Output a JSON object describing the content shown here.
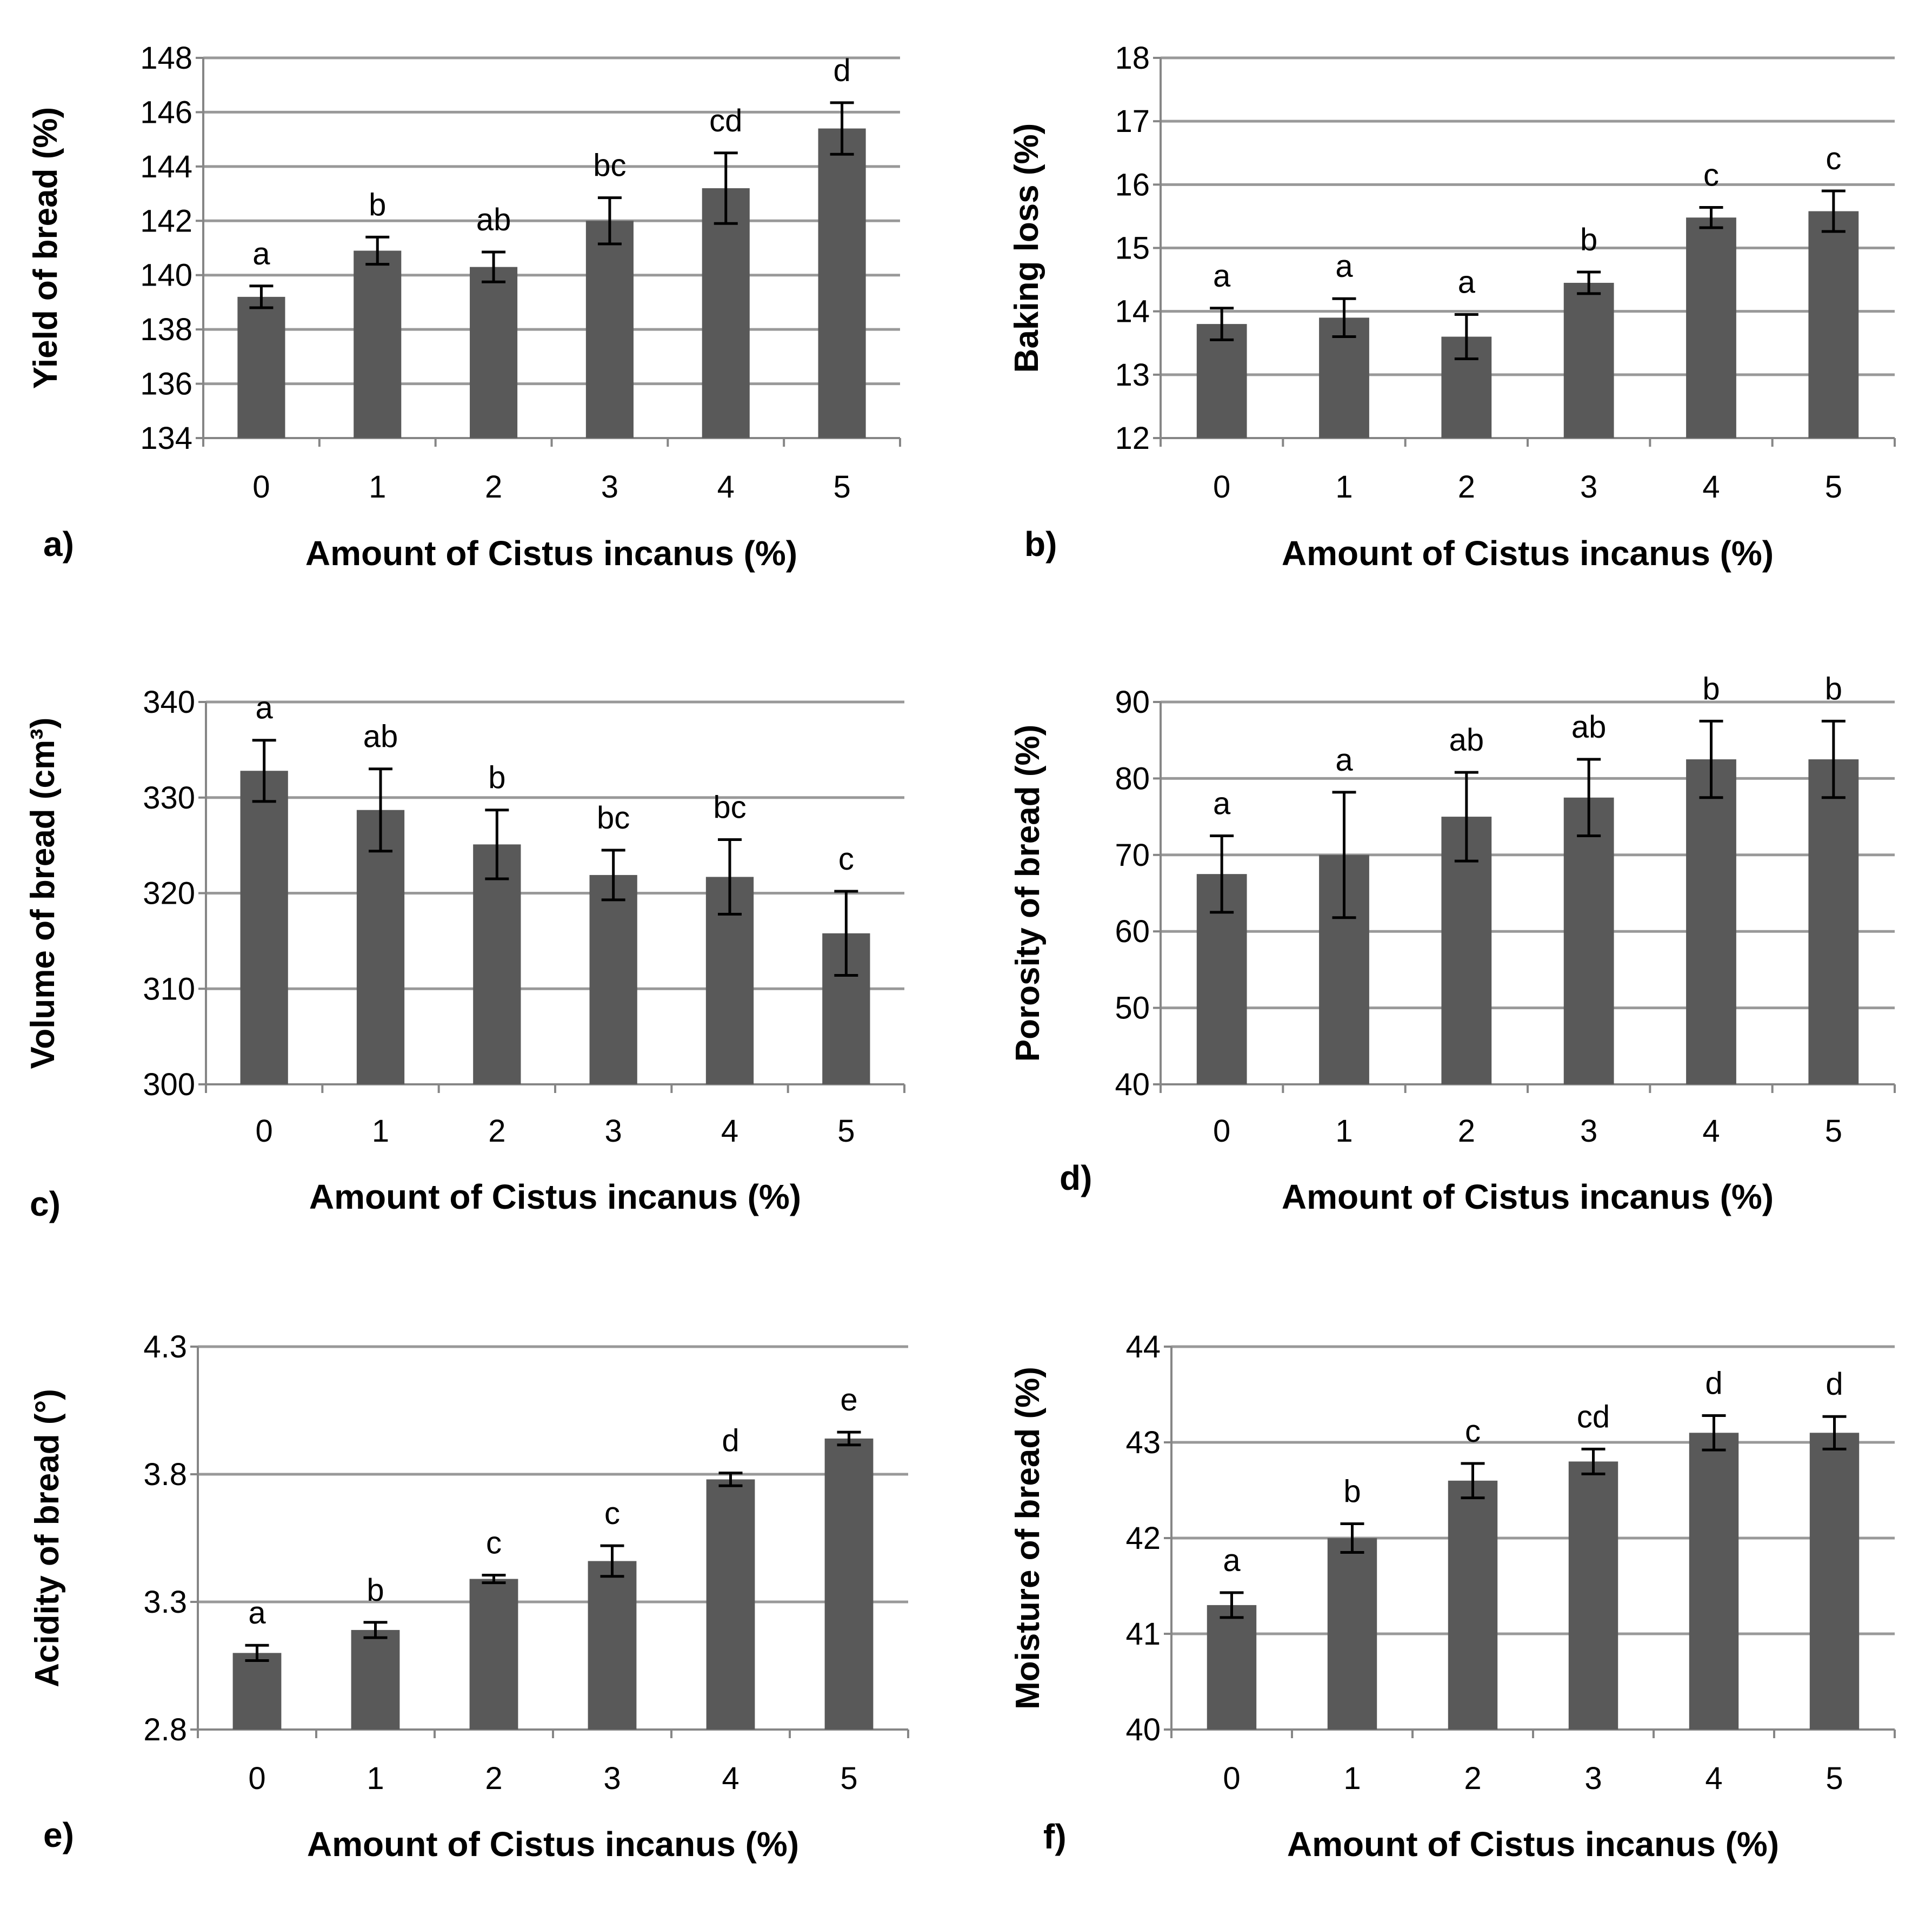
{
  "chart_data": [
    {
      "type": "bar",
      "panel_label": "a)",
      "ylabel": "Yield  of bread (%)",
      "xlabel": "Amount of Cistus incanus (%)",
      "categories": [
        "0",
        "1",
        "2",
        "3",
        "4",
        "5"
      ],
      "values": [
        139.2,
        140.9,
        140.3,
        142.0,
        143.2,
        145.4
      ],
      "errors": [
        0.4,
        0.5,
        0.55,
        0.85,
        1.3,
        0.95
      ],
      "letters": [
        "a",
        "b",
        "ab",
        "bc",
        "cd",
        "d"
      ],
      "ylim": [
        134,
        148
      ],
      "yticks": [
        "134",
        "136",
        "138",
        "140",
        "142",
        "144",
        "146",
        "148"
      ],
      "grid": true
    },
    {
      "type": "bar",
      "panel_label": "b)",
      "ylabel": "Baking loss (%)",
      "xlabel": "Amount of Cistus incanus (%)",
      "categories": [
        "0",
        "1",
        "2",
        "3",
        "4",
        "5"
      ],
      "values": [
        13.8,
        13.9,
        13.6,
        14.45,
        15.48,
        15.58
      ],
      "errors": [
        0.25,
        0.3,
        0.35,
        0.17,
        0.16,
        0.32
      ],
      "letters": [
        "a",
        "a",
        "a",
        "b",
        "c",
        "c"
      ],
      "ylim": [
        12,
        18
      ],
      "yticks": [
        "12",
        "13",
        "14",
        "15",
        "16",
        "17",
        "18"
      ],
      "grid": true
    },
    {
      "type": "bar",
      "panel_label": "c)",
      "ylabel": "Volume of bread (cm³)",
      "xlabel": "Amount of Cistus incanus (%)",
      "categories": [
        "0",
        "1",
        "2",
        "3",
        "4",
        "5"
      ],
      "values": [
        332.8,
        328.7,
        325.1,
        321.9,
        321.7,
        315.8
      ],
      "errors": [
        3.2,
        4.3,
        3.6,
        2.6,
        3.9,
        4.4
      ],
      "letters": [
        "a",
        "ab",
        "b",
        "bc",
        "bc",
        "c"
      ],
      "ylim": [
        300,
        340
      ],
      "yticks": [
        "300",
        "310",
        "320",
        "330",
        "340"
      ],
      "grid": true
    },
    {
      "type": "bar",
      "panel_label": "d)",
      "ylabel": "Porosity of bread (%)",
      "xlabel": "Amount of Cistus incanus (%)",
      "categories": [
        "0",
        "1",
        "2",
        "3",
        "4",
        "5"
      ],
      "values": [
        67.5,
        70.0,
        75.0,
        77.5,
        82.5,
        82.5
      ],
      "errors": [
        5.0,
        8.2,
        5.8,
        5.0,
        5.0,
        5.0
      ],
      "letters": [
        "a",
        "a",
        "ab",
        "ab",
        "b",
        "b"
      ],
      "ylim": [
        40,
        90
      ],
      "yticks": [
        "40",
        "50",
        "60",
        "70",
        "80",
        "90"
      ],
      "grid": true
    },
    {
      "type": "bar",
      "panel_label": "e)",
      "ylabel": "Acidity of bread (°)",
      "xlabel": "Amount of Cistus incanus (%)",
      "categories": [
        "0",
        "1",
        "2",
        "3",
        "4",
        "5"
      ],
      "values": [
        3.1,
        3.19,
        3.39,
        3.46,
        3.78,
        3.94
      ],
      "errors": [
        0.03,
        0.03,
        0.015,
        0.06,
        0.025,
        0.025
      ],
      "letters": [
        "a",
        "b",
        "c",
        "c",
        "d",
        "e"
      ],
      "ylim": [
        2.8,
        4.3
      ],
      "yticks": [
        "2.8",
        "3.3",
        "3.8",
        "4.3"
      ],
      "grid": true
    },
    {
      "type": "bar",
      "panel_label": "f)",
      "ylabel": "Moisture of bread (%)",
      "xlabel": "Amount of Cistus incanus (%)",
      "categories": [
        "0",
        "1",
        "2",
        "3",
        "4",
        "5"
      ],
      "values": [
        41.3,
        42.0,
        42.6,
        42.8,
        43.1,
        43.1
      ],
      "errors": [
        0.13,
        0.15,
        0.18,
        0.13,
        0.18,
        0.17
      ],
      "letters": [
        "a",
        "b",
        "c",
        "cd",
        "d",
        "d"
      ],
      "ylim": [
        40,
        44
      ],
      "yticks": [
        "40",
        "41",
        "42",
        "43",
        "44"
      ],
      "grid": true
    }
  ],
  "colors": {
    "bar": "#595959",
    "grid": "#999999",
    "axis": "#868686",
    "error": "#000000",
    "text": "#000000"
  }
}
